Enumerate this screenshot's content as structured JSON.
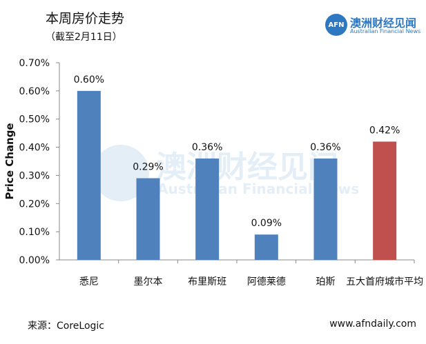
{
  "header": {
    "title": "本周房价走势",
    "subtitle": "（截至2月11日）"
  },
  "logo": {
    "mark": "AFN",
    "name_cn": "澳洲财经见闻",
    "name_en": "Australian Financial News"
  },
  "footer": {
    "source": "来源：CoreLogic",
    "website": "www.afndaily.com"
  },
  "colors": {
    "city_bar": "#4f81bd",
    "average_bar": "#c0504d"
  },
  "chart_data": {
    "type": "bar",
    "title": "本周房价走势",
    "subtitle": "（截至2月11日）",
    "xlabel": "",
    "ylabel": "Price Change",
    "ylim": [
      0,
      0.7
    ],
    "yticks": [
      "0.00%",
      "0.10%",
      "0.20%",
      "0.30%",
      "0.40%",
      "0.50%",
      "0.60%",
      "0.70%"
    ],
    "grid": false,
    "legend": "none",
    "categories": [
      "悉尼",
      "墨尔本",
      "布里斯班",
      "阿德莱德",
      "珀斯",
      "五大首府城市平均"
    ],
    "values": [
      0.6,
      0.29,
      0.36,
      0.09,
      0.36,
      0.42
    ],
    "value_labels": [
      "0.60%",
      "0.29%",
      "0.36%",
      "0.09%",
      "0.36%",
      "0.42%"
    ]
  }
}
